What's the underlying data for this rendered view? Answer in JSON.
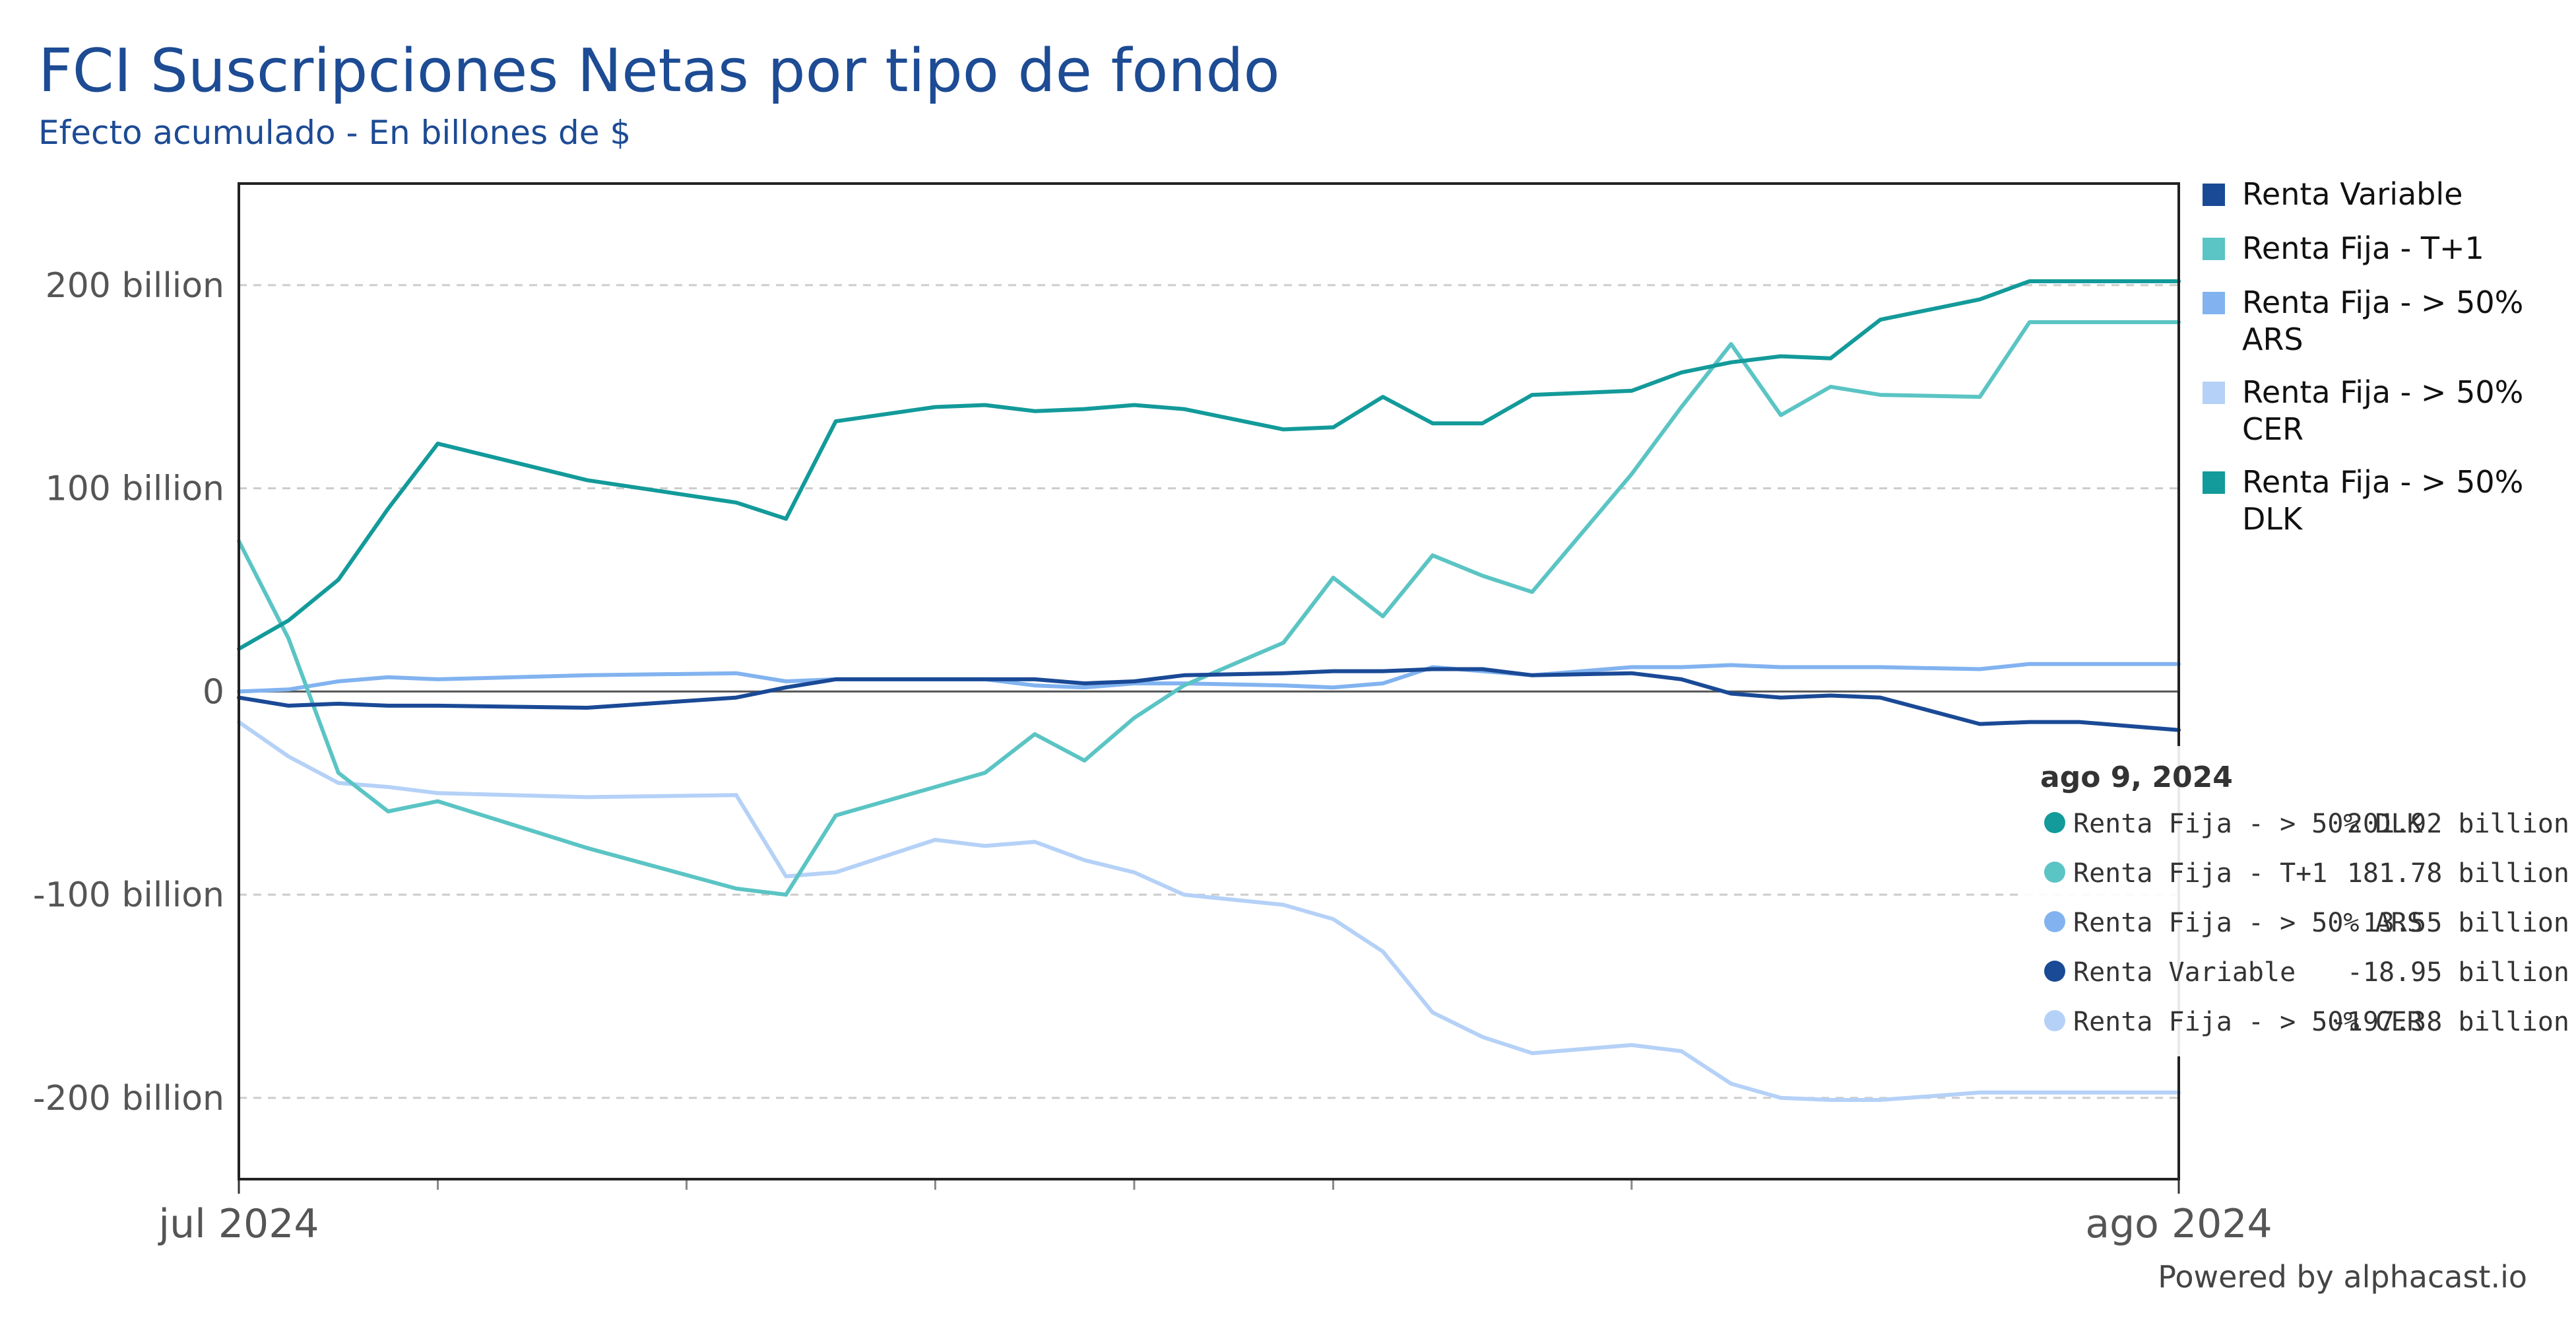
{
  "chart_data": {
    "type": "line",
    "title": "FCI Suscripciones Netas por tipo de fondo",
    "subtitle": "Efecto acumulado - En billones de $",
    "credit": "Powered by alphacast.io",
    "colors": {
      "title": "#1d4b94",
      "grid": "#cccccc",
      "axis": "#333333",
      "zero": "#555555"
    },
    "x": [
      "2024-07-01",
      "2024-07-02",
      "2024-07-03",
      "2024-07-04",
      "2024-07-05",
      "2024-07-08",
      "2024-07-11",
      "2024-07-12",
      "2024-07-13",
      "2024-07-15",
      "2024-07-16",
      "2024-07-17",
      "2024-07-18",
      "2024-07-19",
      "2024-07-20",
      "2024-07-22",
      "2024-07-23",
      "2024-07-24",
      "2024-07-25",
      "2024-07-26",
      "2024-07-27",
      "2024-07-29",
      "2024-07-30",
      "2024-07-31",
      "2024-08-01",
      "2024-08-02",
      "2024-08-03",
      "2024-08-05",
      "2024-08-06",
      "2024-08-07",
      "2024-08-08",
      "2024-08-09"
    ],
    "xticks": [
      {
        "date": "2024-07-01",
        "label": "jul 2024"
      },
      {
        "date": "2024-08-09",
        "label": "ago 2024"
      }
    ],
    "minor_ticks": [
      "2024-07-05",
      "2024-07-10",
      "2024-07-15",
      "2024-07-19",
      "2024-07-23",
      "2024-07-29"
    ],
    "yaxis": {
      "min": -240,
      "max": 250,
      "ticks": [
        {
          "value": 200,
          "label": "200 billion"
        },
        {
          "value": 100,
          "label": "100 billion"
        },
        {
          "value": 0,
          "label": "0"
        },
        {
          "value": -100,
          "label": "-100 billion"
        },
        {
          "value": -200,
          "label": "-200 billion"
        }
      ]
    },
    "series": [
      {
        "name": "Renta Variable",
        "color": "#1a4a96",
        "values": [
          -3,
          -7,
          -6,
          -7,
          -7,
          -8,
          -3,
          2,
          6,
          6,
          6,
          6,
          4,
          5,
          8,
          9,
          10,
          10,
          11,
          11,
          8,
          9,
          6,
          -1,
          -3,
          -2,
          -3,
          -16,
          -15,
          -15,
          -17,
          -18.95
        ]
      },
      {
        "name": "Renta Fija - T+1",
        "color": "#5bc4c4",
        "values": [
          74,
          26,
          -40,
          -59,
          -54,
          -77,
          -97,
          -100,
          -61,
          -47,
          -40,
          -21,
          -34,
          -13,
          3,
          24,
          56,
          37,
          67,
          57,
          49,
          107,
          140,
          171,
          136,
          150,
          146,
          145,
          181.78,
          181.78,
          181.78,
          181.78
        ]
      },
      {
        "name": "Renta Fija - > 50% ARS",
        "color": "#82b3f0",
        "values": [
          0,
          1,
          5,
          7,
          6,
          8,
          9,
          5,
          6,
          6,
          6,
          3,
          2,
          4,
          4,
          3,
          2,
          4,
          12,
          10,
          8,
          12,
          12,
          13,
          12,
          12,
          12,
          11,
          13.55,
          13.55,
          13.55,
          13.55
        ]
      },
      {
        "name": "Renta Fija - > 50% CER",
        "color": "#b5d1f7",
        "values": [
          -15,
          -32,
          -45,
          -47,
          -50,
          -52,
          -51,
          -91,
          -89,
          -73,
          -76,
          -74,
          -83,
          -89,
          -100,
          -105,
          -112,
          -128,
          -158,
          -170,
          -178,
          -174,
          -177,
          -193,
          -200,
          -201,
          -201,
          -197.38,
          -197.38,
          -197.38,
          -197.38,
          -197.38
        ]
      },
      {
        "name": "Renta Fija - > 50% DLK",
        "color": "#139a9a",
        "values": [
          21,
          35,
          55,
          90,
          122,
          104,
          93,
          85,
          133,
          140,
          141,
          138,
          139,
          141,
          139,
          129,
          130,
          145,
          132,
          132,
          146,
          148,
          157,
          162,
          165,
          164,
          183,
          193,
          201.92,
          201.92,
          201.92,
          201.92
        ]
      }
    ],
    "legend": {
      "position": "right",
      "entries": [
        {
          "label": "Renta Variable",
          "label_line2": "",
          "color": "#1a4a96"
        },
        {
          "label": "Renta Fija - T+1",
          "label_line2": "",
          "color": "#5bc4c4"
        },
        {
          "label": "Renta Fija - > 50%",
          "label_line2": "ARS",
          "color": "#82b3f0"
        },
        {
          "label": "Renta Fija - > 50%",
          "label_line2": "CER",
          "color": "#b5d1f7"
        },
        {
          "label": "Renta Fija - > 50%",
          "label_line2": "DLK",
          "color": "#139a9a"
        }
      ]
    },
    "tooltip": {
      "title": "ago 9, 2024",
      "rows": [
        {
          "label": "Renta Fija - > 50% DLK",
          "value": "201.92 billion",
          "color": "#139a9a"
        },
        {
          "label": "Renta Fija - T+1",
          "value": "181.78 billion",
          "color": "#5bc4c4"
        },
        {
          "label": "Renta Fija - > 50% ARS",
          "value": "13.55 billion",
          "color": "#82b3f0"
        },
        {
          "label": "Renta Variable",
          "value": "-18.95 billion",
          "color": "#1a4a96"
        },
        {
          "label": "Renta Fija - > 50% CER",
          "value": "-197.38 billion",
          "color": "#b5d1f7"
        }
      ]
    }
  }
}
